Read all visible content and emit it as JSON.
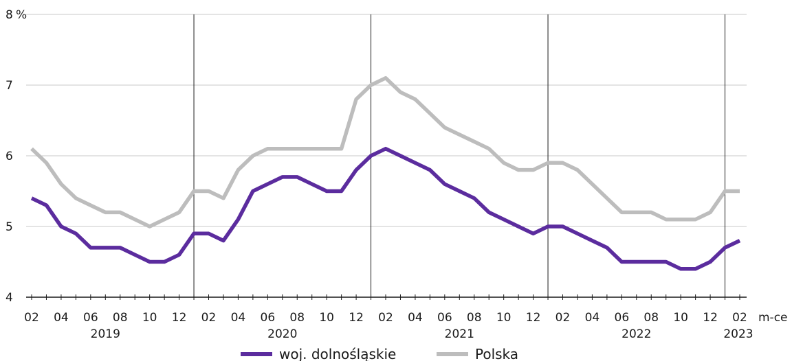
{
  "chart_data": {
    "type": "line",
    "ylabel": "%",
    "xlabel": "m-ce",
    "ylim": [
      4,
      8
    ],
    "yticks": [
      "4",
      "5",
      "6",
      "7",
      "8"
    ],
    "grid": true,
    "legend_position": "bottom",
    "x": [
      "2019-02",
      "2019-03",
      "2019-04",
      "2019-05",
      "2019-06",
      "2019-07",
      "2019-08",
      "2019-09",
      "2019-10",
      "2019-11",
      "2019-12",
      "2020-01",
      "2020-02",
      "2020-03",
      "2020-04",
      "2020-05",
      "2020-06",
      "2020-07",
      "2020-08",
      "2020-09",
      "2020-10",
      "2020-11",
      "2020-12",
      "2021-01",
      "2021-02",
      "2021-03",
      "2021-04",
      "2021-05",
      "2021-06",
      "2021-07",
      "2021-08",
      "2021-09",
      "2021-10",
      "2021-11",
      "2021-12",
      "2022-01",
      "2022-02",
      "2022-03",
      "2022-04",
      "2022-05",
      "2022-06",
      "2022-07",
      "2022-08",
      "2022-09",
      "2022-10",
      "2022-11",
      "2022-12",
      "2023-01",
      "2023-02"
    ],
    "xtick_labels": [
      {
        "label": "02",
        "x": "2019-02"
      },
      {
        "label": "04",
        "x": "2019-04"
      },
      {
        "label": "06",
        "x": "2019-06"
      },
      {
        "label": "08",
        "x": "2019-08"
      },
      {
        "label": "10",
        "x": "2019-10"
      },
      {
        "label": "12",
        "x": "2019-12"
      },
      {
        "label": "02",
        "x": "2020-02"
      },
      {
        "label": "04",
        "x": "2020-04"
      },
      {
        "label": "06",
        "x": "2020-06"
      },
      {
        "label": "08",
        "x": "2020-08"
      },
      {
        "label": "10",
        "x": "2020-10"
      },
      {
        "label": "12",
        "x": "2020-12"
      },
      {
        "label": "02",
        "x": "2021-02"
      },
      {
        "label": "04",
        "x": "2021-04"
      },
      {
        "label": "06",
        "x": "2021-06"
      },
      {
        "label": "08",
        "x": "2021-08"
      },
      {
        "label": "10",
        "x": "2021-10"
      },
      {
        "label": "12",
        "x": "2021-12"
      },
      {
        "label": "02",
        "x": "2022-02"
      },
      {
        "label": "04",
        "x": "2022-04"
      },
      {
        "label": "06",
        "x": "2022-06"
      },
      {
        "label": "08",
        "x": "2022-08"
      },
      {
        "label": "10",
        "x": "2022-10"
      },
      {
        "label": "12",
        "x": "2022-12"
      },
      {
        "label": "02",
        "x": "2023-02"
      }
    ],
    "year_labels": [
      {
        "label": "2019",
        "x": "2019-07"
      },
      {
        "label": "2020",
        "x": "2020-07"
      },
      {
        "label": "2021",
        "x": "2021-07"
      },
      {
        "label": "2022",
        "x": "2022-07"
      },
      {
        "label": "2023",
        "x": "2023-02"
      }
    ],
    "year_separators": [
      "2020-01",
      "2021-01",
      "2022-01",
      "2023-01"
    ],
    "series": [
      {
        "name": "woj. dolnośląskie",
        "color": "#5b2c9e",
        "values": [
          5.4,
          5.3,
          5.0,
          4.9,
          4.7,
          4.7,
          4.7,
          4.6,
          4.5,
          4.5,
          4.6,
          4.9,
          4.9,
          4.8,
          5.1,
          5.5,
          5.6,
          5.7,
          5.7,
          5.6,
          5.5,
          5.5,
          5.8,
          6.0,
          6.1,
          6.0,
          5.9,
          5.8,
          5.6,
          5.5,
          5.4,
          5.2,
          5.1,
          5.0,
          4.9,
          5.0,
          5.0,
          4.9,
          4.8,
          4.7,
          4.5,
          4.5,
          4.5,
          4.5,
          4.4,
          4.4,
          4.5,
          4.7,
          4.8
        ]
      },
      {
        "name": "Polska",
        "color": "#bdbdbd",
        "values": [
          6.1,
          5.9,
          5.6,
          5.4,
          5.3,
          5.2,
          5.2,
          5.1,
          5.0,
          5.1,
          5.2,
          5.5,
          5.5,
          5.4,
          5.8,
          6.0,
          6.1,
          6.1,
          6.1,
          6.1,
          6.1,
          6.1,
          6.8,
          7.0,
          7.1,
          6.9,
          6.8,
          6.6,
          6.4,
          6.3,
          6.2,
          6.1,
          5.9,
          5.8,
          5.8,
          5.9,
          5.9,
          5.8,
          5.6,
          5.4,
          5.2,
          5.2,
          5.2,
          5.1,
          5.1,
          5.1,
          5.2,
          5.5,
          5.5
        ]
      }
    ]
  }
}
